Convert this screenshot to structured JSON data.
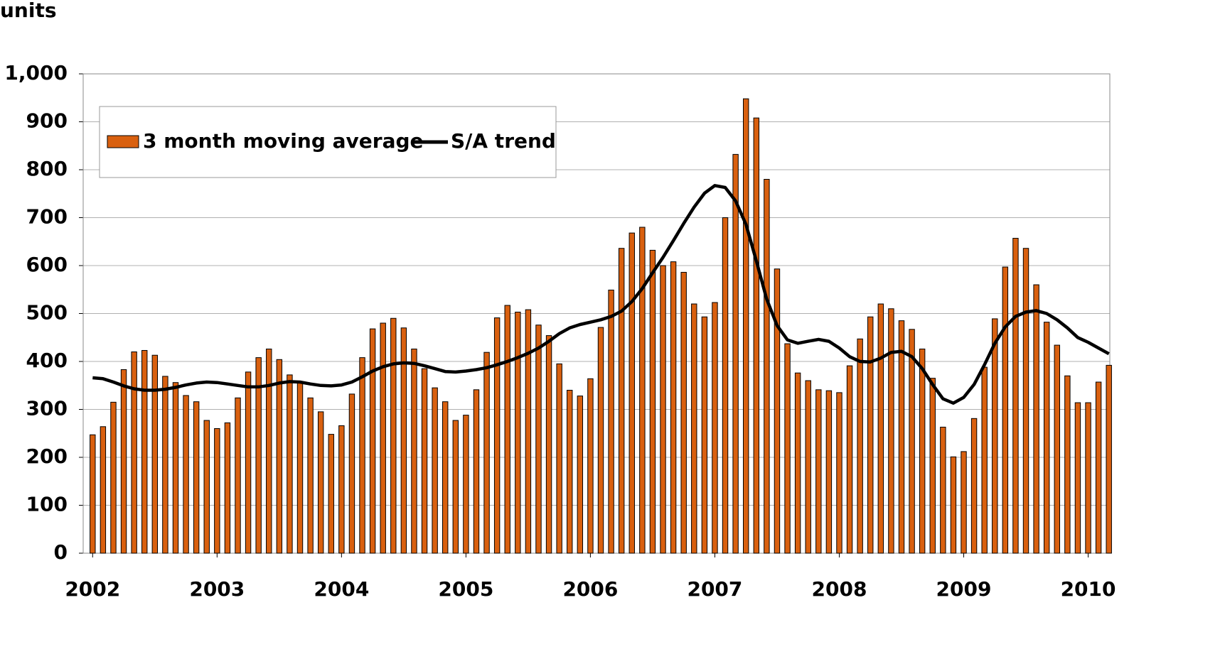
{
  "chart_data": {
    "type": "bar-line",
    "y_axis_label": "units",
    "categories": [
      "2002",
      null,
      null,
      null,
      null,
      null,
      null,
      null,
      null,
      null,
      null,
      null,
      "2003",
      null,
      null,
      null,
      null,
      null,
      null,
      null,
      null,
      null,
      null,
      null,
      "2004",
      null,
      null,
      null,
      null,
      null,
      null,
      null,
      null,
      null,
      null,
      null,
      "2005",
      null,
      null,
      null,
      null,
      null,
      null,
      null,
      null,
      null,
      null,
      null,
      "2006",
      null,
      null,
      null,
      null,
      null,
      null,
      null,
      null,
      null,
      null,
      null,
      "2007",
      null,
      null,
      null,
      null,
      null,
      null,
      null,
      null,
      null,
      null,
      null,
      "2008",
      null,
      null,
      null,
      null,
      null,
      null,
      null,
      null,
      null,
      null,
      null,
      "2009",
      null,
      null,
      null,
      null,
      null,
      null,
      null,
      null,
      null,
      null,
      null,
      "2010",
      null,
      null
    ],
    "series": [
      {
        "name": "3 month moving average",
        "type": "bar",
        "color": "#d9600f",
        "values": [
          247,
          264,
          315,
          383,
          420,
          423,
          413,
          369,
          356,
          329,
          316,
          277,
          260,
          272,
          324,
          378,
          408,
          426,
          404,
          372,
          355,
          324,
          295,
          248,
          266,
          332,
          408,
          468,
          480,
          490,
          470,
          426,
          385,
          345,
          316,
          277,
          288,
          341,
          419,
          491,
          517,
          503,
          508,
          476,
          454,
          395,
          340,
          328,
          364,
          471,
          549,
          636,
          668,
          680,
          632,
          600,
          608,
          586,
          520,
          493,
          523,
          700,
          832,
          948,
          908,
          780,
          593,
          437,
          376,
          360,
          341,
          339,
          335,
          391,
          447,
          493,
          520,
          510,
          485,
          467,
          426,
          365,
          263,
          201,
          212,
          281,
          388,
          489,
          597,
          657,
          636,
          560,
          482,
          434,
          370,
          314,
          314,
          357,
          392
        ]
      },
      {
        "name": "S/A trend",
        "type": "line",
        "color": "#000000",
        "values": [
          366,
          364,
          357,
          349,
          343,
          340,
          340,
          342,
          346,
          351,
          355,
          357,
          356,
          353,
          350,
          347,
          347,
          350,
          355,
          358,
          357,
          353,
          350,
          349,
          351,
          357,
          368,
          380,
          389,
          395,
          397,
          396,
          391,
          385,
          379,
          378,
          380,
          383,
          387,
          393,
          400,
          408,
          417,
          428,
          442,
          458,
          470,
          477,
          482,
          487,
          494,
          505,
          525,
          552,
          585,
          617,
          652,
          688,
          722,
          751,
          767,
          763,
          735,
          686,
          610,
          530,
          475,
          445,
          438,
          442,
          446,
          442,
          428,
          410,
          400,
          399,
          407,
          419,
          421,
          410,
          385,
          352,
          322,
          313,
          325,
          352,
          393,
          438,
          472,
          494,
          503,
          506,
          500,
          487,
          470,
          450,
          440,
          428,
          416
        ]
      }
    ],
    "ylim": [
      0,
      1000
    ],
    "yticks": [
      0,
      100,
      200,
      300,
      400,
      500,
      600,
      700,
      800,
      900,
      {
        "value": 1000,
        "label": "1,000"
      }
    ],
    "grid": true,
    "legend": "top-left"
  }
}
